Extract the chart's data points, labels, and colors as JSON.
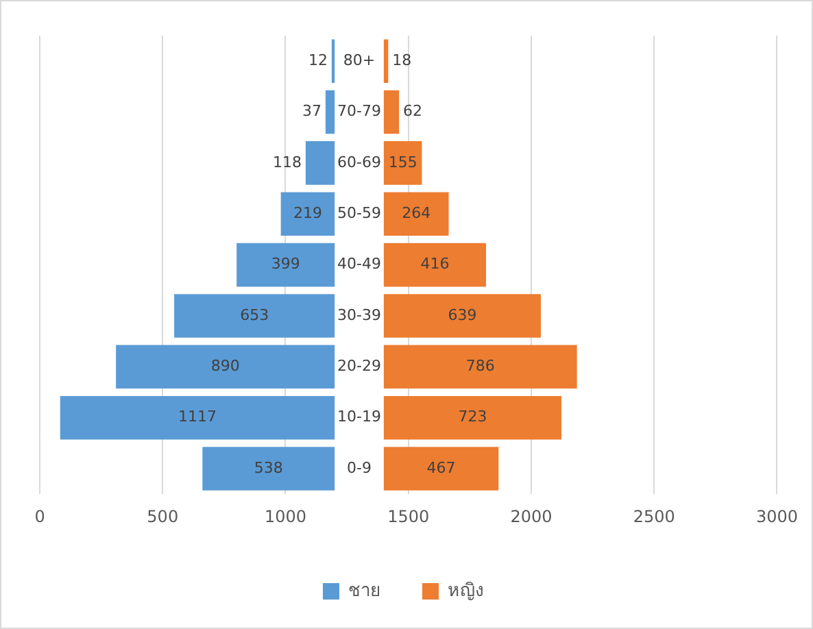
{
  "chart_data": {
    "type": "bar",
    "orientation": "horizontal",
    "categories": [
      "80+",
      "70-79",
      "60-69",
      "50-59",
      "40-49",
      "30-39",
      "20-29",
      "10-19",
      "0-9"
    ],
    "series": [
      {
        "name": "ชาย",
        "color": "#5b9bd5",
        "values": [
          12,
          37,
          118,
          219,
          399,
          653,
          890,
          1117,
          538
        ],
        "base": [
          1188,
          1163,
          1082,
          981,
          801,
          547,
          310,
          83,
          662
        ]
      },
      {
        "name": "หญิง",
        "color": "#ed7d31",
        "values": [
          18,
          62,
          155,
          264,
          416,
          639,
          786,
          723,
          467
        ],
        "base": [
          1400,
          1400,
          1400,
          1400,
          1400,
          1400,
          1400,
          1400,
          1400
        ]
      }
    ],
    "xlim": [
      0,
      3000
    ],
    "xticks": [
      0,
      500,
      1000,
      1500,
      2000,
      2500,
      3000
    ],
    "grid": "x",
    "legend": "bottom",
    "data_labels": true
  }
}
